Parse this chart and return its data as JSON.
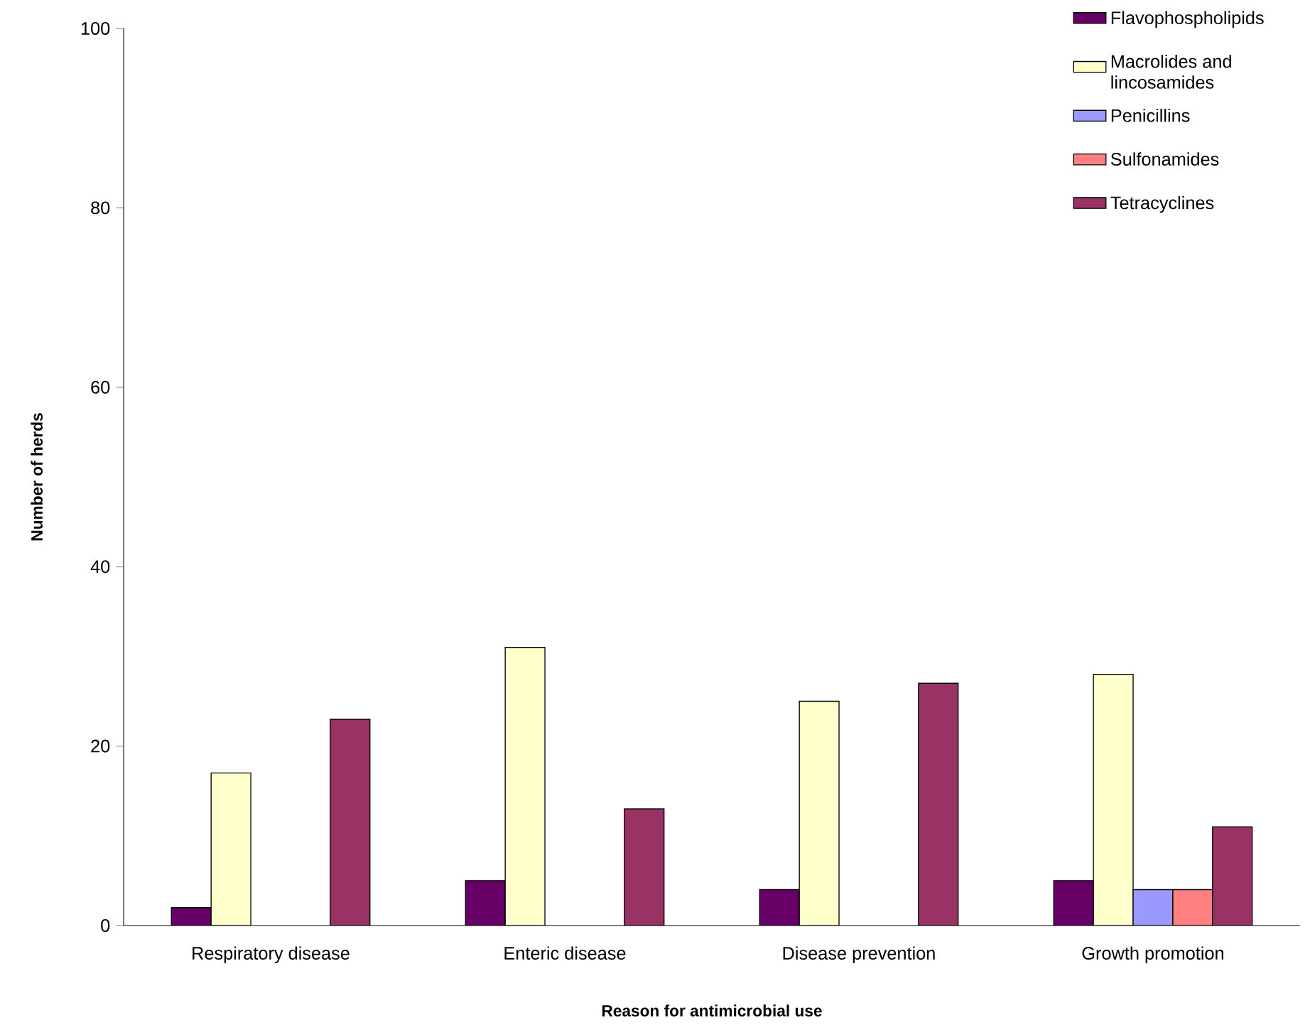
{
  "chart_data": {
    "type": "bar",
    "xlabel": "Reason for antimicrobial use",
    "ylabel": "Number of herds",
    "categories": [
      "Respiratory disease",
      "Enteric disease",
      "Disease prevention",
      "Growth promotion"
    ],
    "series": [
      {
        "name": "Flavophospholipids",
        "color": "#660066",
        "values": [
          2,
          5,
          4,
          5
        ]
      },
      {
        "name": "Macrolides and lincosamides",
        "color": "#ffffcc",
        "values": [
          17,
          31,
          25,
          28
        ]
      },
      {
        "name": "Penicillins",
        "color": "#9999ff",
        "values": [
          null,
          null,
          null,
          4
        ]
      },
      {
        "name": "Sulfonamides",
        "color": "#ff8080",
        "values": [
          null,
          null,
          null,
          4
        ]
      },
      {
        "name": "Tetracyclines",
        "color": "#993366",
        "values": [
          23,
          13,
          27,
          11
        ]
      }
    ],
    "ylim": [
      0,
      100
    ],
    "yticks": [
      0,
      20,
      40,
      60,
      80,
      100
    ],
    "grid": false,
    "legend": "top right"
  }
}
